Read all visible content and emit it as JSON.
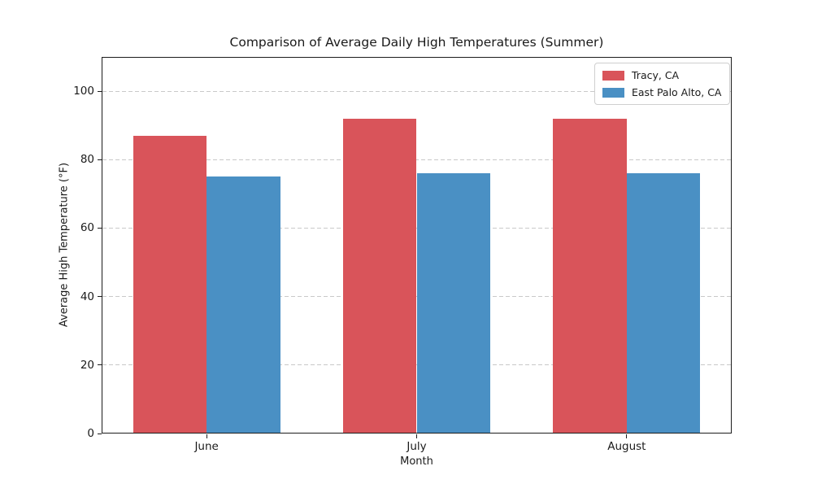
{
  "chart_data": {
    "type": "bar",
    "title": "Comparison of Average Daily High Temperatures (Summer)",
    "xlabel": "Month",
    "ylabel": "Average High Temperature (°F)",
    "categories": [
      "June",
      "July",
      "August"
    ],
    "series": [
      {
        "name": "Tracy, CA",
        "color": "#d9545a",
        "values": [
          87,
          92,
          92
        ]
      },
      {
        "name": "East Palo Alto, CA",
        "color": "#4a90c4",
        "values": [
          75,
          76,
          76
        ]
      }
    ],
    "ylim": [
      0,
      110
    ],
    "yticks": [
      0,
      20,
      40,
      60,
      80,
      100
    ],
    "grid": "horizontal dashed",
    "grid_color": "#c9c9c9",
    "legend_position": "upper right",
    "bar_width_fraction": 0.35
  }
}
